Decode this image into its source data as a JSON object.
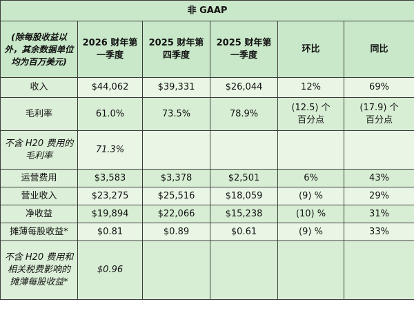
{
  "title": "非 GAAP",
  "header": {
    "label": "(除每股收益以外，其余数据单位均为百万美元)",
    "columns": [
      "2026 财年第一季度",
      "2025 财年第四季度",
      "2025 财年第一季度",
      "环比",
      "同比"
    ]
  },
  "rows": [
    {
      "label": "收入",
      "q1fy26": "$44,062",
      "q4fy25": "$39,331",
      "q1fy25": "$26,044",
      "qoq": "12%",
      "yoy": "69%"
    },
    {
      "label": "毛利率",
      "q1fy26": "61.0%",
      "q4fy25": "73.5%",
      "q1fy25": "78.9%",
      "qoq": "(12.5) 个百分点",
      "yoy": "(17.9) 个百分点"
    },
    {
      "label": "不含 H20 费用的毛利率",
      "q1fy26": "71.3%",
      "q4fy25": "",
      "q1fy25": "",
      "qoq": "",
      "yoy": ""
    },
    {
      "label": "运营费用",
      "q1fy26": "$3,583",
      "q4fy25": "$3,378",
      "q1fy25": "$2,501",
      "qoq": "6%",
      "yoy": "43%"
    },
    {
      "label": "营业收入",
      "q1fy26": "$23,275",
      "q4fy25": "$25,516",
      "q1fy25": "$18,059",
      "qoq": "(9) %",
      "yoy": "29%"
    },
    {
      "label": "净收益",
      "q1fy26": "$19,894",
      "q4fy25": "$22,066",
      "q1fy25": "$15,238",
      "qoq": "(10) %",
      "yoy": "31%"
    },
    {
      "label": "摊薄每股收益*",
      "q1fy26": "$0.81",
      "q4fy25": "$0.89",
      "q1fy25": "$0.61",
      "qoq": "(9) %",
      "yoy": "33%"
    },
    {
      "label": "不含 H20 费用和相关税费影响的摊薄每股收益*",
      "q1fy26": "$0.96",
      "q4fy25": "",
      "q1fy25": "",
      "qoq": "",
      "yoy": ""
    }
  ]
}
